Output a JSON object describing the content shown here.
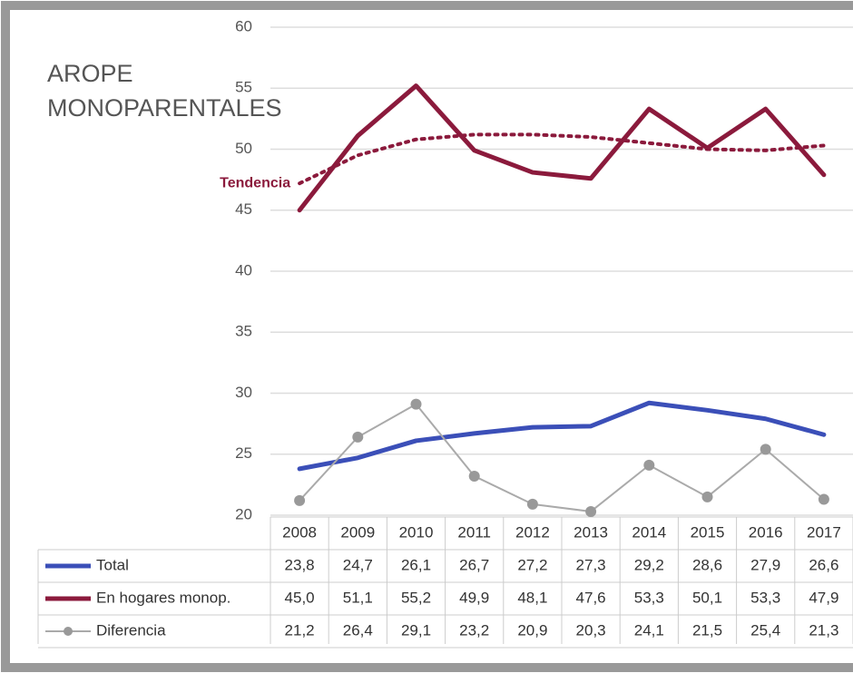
{
  "chart_data": {
    "type": "line",
    "title": "AROPE MONOPARENTALES",
    "categories": [
      "2008",
      "2009",
      "2010",
      "2011",
      "2012",
      "2013",
      "2014",
      "2015",
      "2016",
      "2017"
    ],
    "ylim": [
      20,
      60
    ],
    "yticks": [
      20,
      25,
      30,
      35,
      40,
      45,
      50,
      55,
      60
    ],
    "grid": true,
    "series": [
      {
        "name": "Total",
        "color": "#3b4fb8",
        "values": [
          23.8,
          24.7,
          26.1,
          26.7,
          27.2,
          27.3,
          29.2,
          28.6,
          27.9,
          26.6
        ],
        "value_labels": [
          "23,8",
          "24,7",
          "26,1",
          "26,7",
          "27,2",
          "27,3",
          "29,2",
          "28,6",
          "27,9",
          "26,6"
        ]
      },
      {
        "name": "En hogares monop.",
        "color": "#8b1a3c",
        "values": [
          45.0,
          51.1,
          55.2,
          49.9,
          48.1,
          47.6,
          53.3,
          50.1,
          53.3,
          47.9
        ],
        "value_labels": [
          "45,0",
          "51,1",
          "55,2",
          "49,9",
          "48,1",
          "47,6",
          "53,3",
          "50,1",
          "53,3",
          "47,9"
        ]
      },
      {
        "name": "Diferencia",
        "color": "#aaaaaa",
        "marker": true,
        "values": [
          21.2,
          26.4,
          29.1,
          23.2,
          20.9,
          20.3,
          24.1,
          21.5,
          25.4,
          21.3
        ],
        "value_labels": [
          "21,2",
          "26,4",
          "29,1",
          "23,2",
          "20,9",
          "20,3",
          "24,1",
          "21,5",
          "25,4",
          "21,3"
        ]
      },
      {
        "name": "Tendencia",
        "color": "#8b1a3c",
        "dashed": true,
        "values": [
          47.2,
          49.5,
          50.8,
          51.2,
          51.2,
          51.0,
          50.5,
          50.0,
          49.9,
          50.3
        ]
      }
    ]
  }
}
